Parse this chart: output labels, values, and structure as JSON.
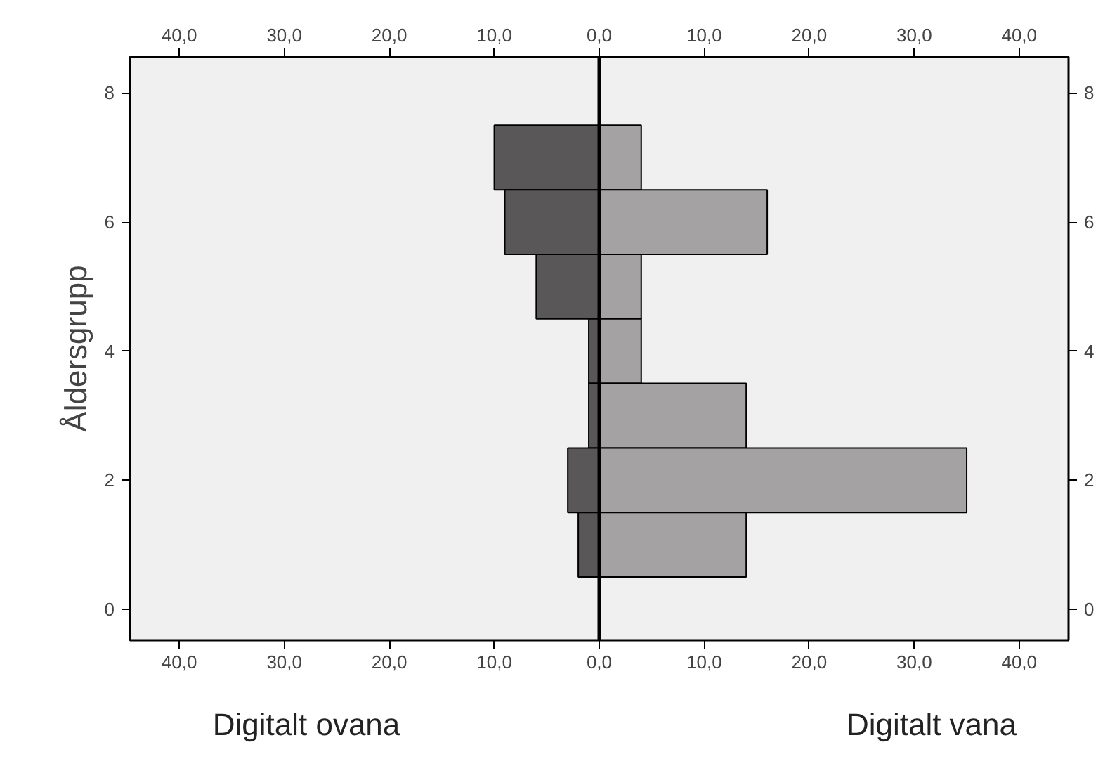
{
  "chart_data": {
    "type": "bar",
    "orientation": "horizontal",
    "stacked": true,
    "ylabel": "Åldersgrupp",
    "annotations": [
      "Digitalt ovana",
      "Digitalt vana"
    ],
    "x": [
      7,
      6,
      5,
      4,
      3,
      2,
      1
    ],
    "series": [
      {
        "color": "#5a5758",
        "values": [
          -10,
          -9,
          -6,
          -1,
          -1,
          -3,
          -2
        ]
      },
      {
        "color": "#a5a2a3",
        "values": [
          4,
          16,
          4,
          4,
          14,
          35,
          14
        ]
      }
    ],
    "xlim": [
      -44.7,
      44.7
    ],
    "xticks": [
      {
        "value": -40,
        "label": "40,0"
      },
      {
        "value": -30,
        "label": "30,0"
      },
      {
        "value": -20,
        "label": "20,0"
      },
      {
        "value": -10,
        "label": "10,0"
      },
      {
        "value": 0,
        "label": "0,0"
      },
      {
        "value": 10,
        "label": "10,0"
      },
      {
        "value": 20,
        "label": "20,0"
      },
      {
        "value": 30,
        "label": "30,0"
      },
      {
        "value": 40,
        "label": "40,0"
      }
    ],
    "x2lim": [
      -44.7,
      44.7
    ],
    "x2ticks": [
      {
        "value": -40,
        "label": "40,0"
      },
      {
        "value": -30,
        "label": "30,0"
      },
      {
        "value": -20,
        "label": "20,0"
      },
      {
        "value": -10,
        "label": "10,0"
      },
      {
        "value": 0,
        "label": "0,0"
      },
      {
        "value": 10,
        "label": "10,0"
      },
      {
        "value": 20,
        "label": "20,0"
      },
      {
        "value": 30,
        "label": "30,0"
      },
      {
        "value": 40,
        "label": "40,0"
      }
    ],
    "ylim": [
      -0.48,
      8.56
    ],
    "yticks": [
      0,
      2,
      4,
      6,
      8
    ],
    "y2lim": [
      -0.48,
      8.56
    ],
    "y2ticks": [
      0,
      2,
      4,
      6,
      8
    ],
    "ref_lines": [
      {
        "axis": "x",
        "value": 0,
        "color": "#000000"
      }
    ],
    "grid": false
  }
}
